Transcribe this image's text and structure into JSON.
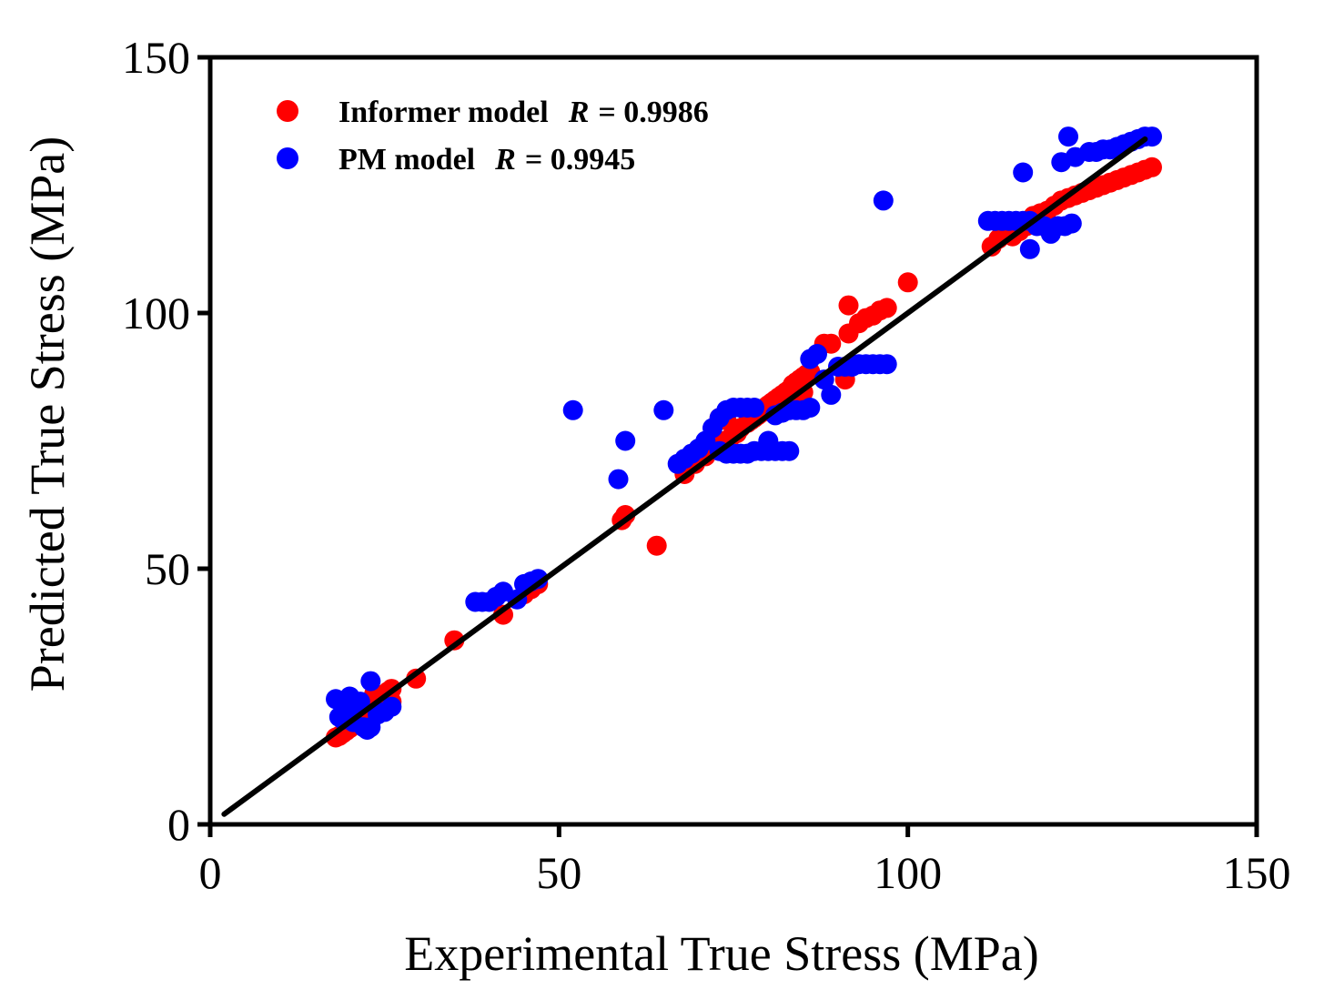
{
  "chart_data": {
    "type": "scatter",
    "xlabel": "Experimental True Stress (MPa)",
    "ylabel": "Predicted True Stress (MPa)",
    "xlim": [
      0,
      150
    ],
    "ylim": [
      0,
      150
    ],
    "xticks": [
      "0",
      "50",
      "100",
      "150"
    ],
    "yticks": [
      "0",
      "50",
      "100",
      "150"
    ],
    "grid": false,
    "legend_position": "top-left",
    "reference_line": {
      "x": [
        2,
        134
      ],
      "y": [
        2,
        134
      ],
      "color": "#000000"
    },
    "series": [
      {
        "name": "Informer model",
        "r_label": "R",
        "r_value": "= 0.9986",
        "color": "#ff0000",
        "points": [
          [
            18,
            17
          ],
          [
            18.5,
            17.3
          ],
          [
            19,
            17.8
          ],
          [
            19.5,
            18.3
          ],
          [
            20,
            18.8
          ],
          [
            20.5,
            19.3
          ],
          [
            21,
            19.8
          ],
          [
            21.5,
            20.3
          ],
          [
            22,
            20.8
          ],
          [
            22.5,
            21.5
          ],
          [
            23,
            22
          ],
          [
            23.5,
            23
          ],
          [
            24,
            24
          ],
          [
            24.5,
            25
          ],
          [
            25,
            25.5
          ],
          [
            25.5,
            26
          ],
          [
            26,
            26.5
          ],
          [
            23.5,
            25.5
          ],
          [
            24,
            22.5
          ],
          [
            25,
            23.5
          ],
          [
            26,
            24
          ],
          [
            29.5,
            28.5
          ],
          [
            35,
            36
          ],
          [
            42,
            41
          ],
          [
            45,
            45
          ],
          [
            46,
            46
          ],
          [
            47,
            47
          ],
          [
            59,
            59.5
          ],
          [
            59.5,
            60.5
          ],
          [
            64,
            54.5
          ],
          [
            68,
            68.5
          ],
          [
            69.5,
            70.5
          ],
          [
            71,
            72
          ],
          [
            72,
            73.5
          ],
          [
            73,
            75
          ],
          [
            73,
            79.5
          ],
          [
            74,
            79
          ],
          [
            74.5,
            75.5
          ],
          [
            75.5,
            76.5
          ],
          [
            76,
            77.5
          ],
          [
            77,
            78.5
          ],
          [
            77.5,
            79
          ],
          [
            78,
            79.5
          ],
          [
            78.5,
            80
          ],
          [
            79,
            80.5
          ],
          [
            79.5,
            81.5
          ],
          [
            80,
            82
          ],
          [
            80.5,
            82.5
          ],
          [
            81,
            83
          ],
          [
            81.5,
            83.5
          ],
          [
            82,
            84
          ],
          [
            82.5,
            84.5
          ],
          [
            83,
            85
          ],
          [
            83.5,
            86
          ],
          [
            84,
            86.5
          ],
          [
            84.5,
            87
          ],
          [
            85,
            87.5
          ],
          [
            85.5,
            88
          ],
          [
            86,
            88.5
          ],
          [
            82,
            81.5
          ],
          [
            83,
            82.5
          ],
          [
            84,
            83.5
          ],
          [
            85,
            84.5
          ],
          [
            88,
            94
          ],
          [
            89,
            94
          ],
          [
            91,
            87
          ],
          [
            91.5,
            96
          ],
          [
            91.5,
            101.5
          ],
          [
            93,
            98
          ],
          [
            94,
            99
          ],
          [
            95,
            99.5
          ],
          [
            96,
            100.5
          ],
          [
            97,
            101
          ],
          [
            100,
            106
          ],
          [
            112,
            113
          ],
          [
            113,
            114.5
          ],
          [
            114,
            115.5
          ],
          [
            115,
            115
          ],
          [
            116,
            116
          ],
          [
            117,
            117
          ],
          [
            117.5,
            118
          ],
          [
            118,
            119
          ],
          [
            119,
            119.5
          ],
          [
            120,
            120
          ],
          [
            121,
            121
          ],
          [
            122,
            122
          ],
          [
            123,
            122.5
          ],
          [
            124,
            123
          ],
          [
            125,
            123.5
          ],
          [
            126,
            124
          ],
          [
            127,
            124.5
          ],
          [
            128,
            125
          ],
          [
            129,
            125.5
          ],
          [
            130,
            126
          ],
          [
            131,
            126.5
          ],
          [
            132,
            127
          ],
          [
            133,
            127.5
          ],
          [
            134,
            128
          ],
          [
            135,
            128.5
          ]
        ]
      },
      {
        "name": "PM model",
        "r_label": "R",
        "r_value": "= 0.9945",
        "color": "#0000ff",
        "points": [
          [
            18,
            24.5
          ],
          [
            18.5,
            21
          ],
          [
            19,
            20.5
          ],
          [
            19.5,
            22.5
          ],
          [
            20,
            25
          ],
          [
            20.5,
            20
          ],
          [
            21,
            23.5
          ],
          [
            21.5,
            24
          ],
          [
            22,
            19
          ],
          [
            22.5,
            18.5
          ],
          [
            23,
            19
          ],
          [
            23,
            28
          ],
          [
            24,
            21.5
          ],
          [
            25,
            22
          ],
          [
            26,
            23
          ],
          [
            38,
            43.5
          ],
          [
            39,
            43.5
          ],
          [
            40,
            43.5
          ],
          [
            41,
            44.5
          ],
          [
            42,
            45.5
          ],
          [
            44,
            44
          ],
          [
            45,
            47
          ],
          [
            46,
            47.5
          ],
          [
            47,
            48
          ],
          [
            52,
            81
          ],
          [
            58.5,
            67.5
          ],
          [
            59.5,
            75
          ],
          [
            65,
            81
          ],
          [
            67,
            70.5
          ],
          [
            68,
            71.5
          ],
          [
            69,
            72.5
          ],
          [
            70,
            73.5
          ],
          [
            71,
            75
          ],
          [
            72,
            77.5
          ],
          [
            73,
            79.5
          ],
          [
            74,
            81
          ],
          [
            75,
            81.5
          ],
          [
            76,
            81.5
          ],
          [
            77,
            81.5
          ],
          [
            78,
            81.5
          ],
          [
            73,
            73
          ],
          [
            74,
            72.5
          ],
          [
            75,
            72.5
          ],
          [
            76,
            72.5
          ],
          [
            77,
            72.5
          ],
          [
            78,
            73
          ],
          [
            79,
            73
          ],
          [
            80,
            73
          ],
          [
            81,
            73
          ],
          [
            82,
            73
          ],
          [
            83,
            73
          ],
          [
            80,
            75
          ],
          [
            81,
            80
          ],
          [
            82,
            80.5
          ],
          [
            83,
            81
          ],
          [
            84,
            81
          ],
          [
            85,
            81
          ],
          [
            86,
            81.5
          ],
          [
            86,
            91
          ],
          [
            87,
            92
          ],
          [
            88,
            87
          ],
          [
            89,
            84
          ],
          [
            90,
            89.5
          ],
          [
            91,
            89.5
          ],
          [
            92,
            89.5
          ],
          [
            93,
            90
          ],
          [
            94,
            90
          ],
          [
            95,
            90
          ],
          [
            96,
            90
          ],
          [
            97,
            90
          ],
          [
            96.5,
            122
          ],
          [
            111.5,
            118
          ],
          [
            112.5,
            118
          ],
          [
            113.5,
            118
          ],
          [
            114.5,
            118
          ],
          [
            115.5,
            118
          ],
          [
            116.5,
            118
          ],
          [
            117.5,
            118
          ],
          [
            116.5,
            127.5
          ],
          [
            117.5,
            112.5
          ],
          [
            118.5,
            117
          ],
          [
            119.5,
            117
          ],
          [
            120.5,
            115.5
          ],
          [
            121.5,
            117
          ],
          [
            122.5,
            117
          ],
          [
            123.5,
            117.5
          ],
          [
            122,
            129.5
          ],
          [
            123,
            134.5
          ],
          [
            124,
            130.5
          ],
          [
            126,
            131.5
          ],
          [
            127,
            131.5
          ],
          [
            128,
            132
          ],
          [
            129,
            132
          ],
          [
            130,
            132.5
          ],
          [
            131,
            133
          ],
          [
            132,
            133.5
          ],
          [
            133,
            134
          ],
          [
            134,
            134.5
          ],
          [
            135,
            134.5
          ]
        ]
      }
    ]
  }
}
